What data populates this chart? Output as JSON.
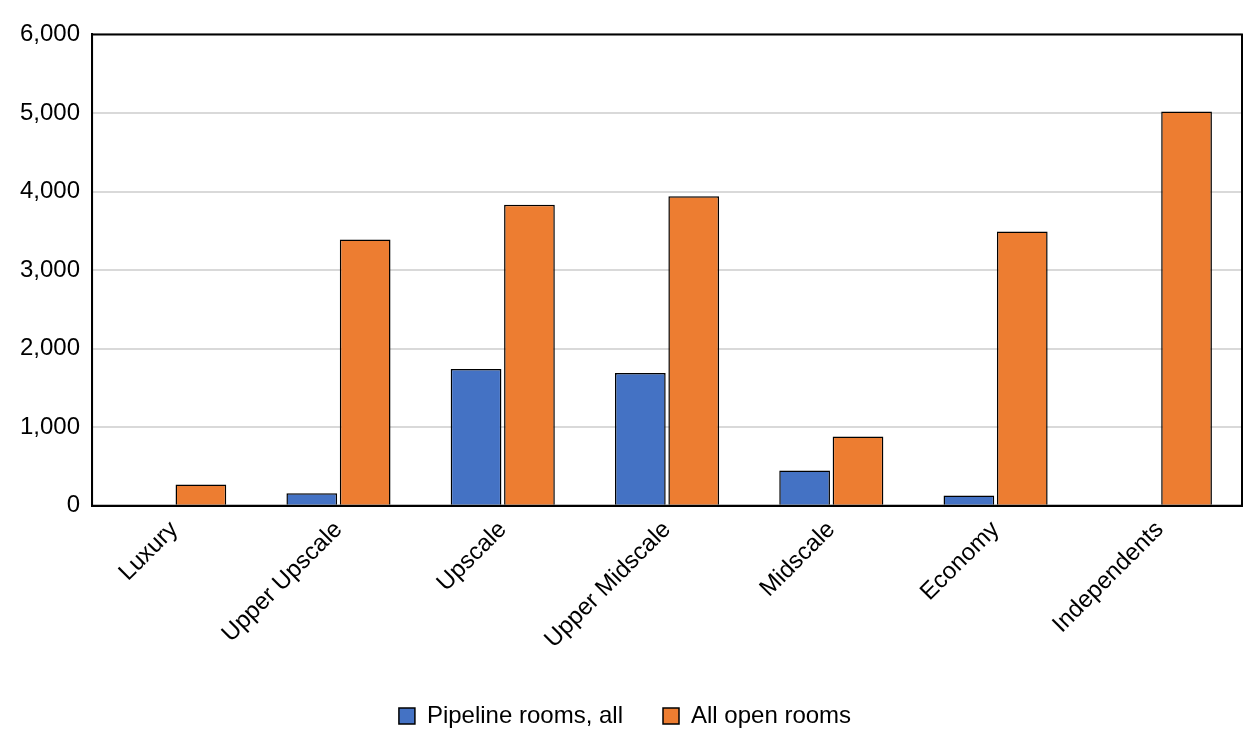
{
  "chart_data": {
    "type": "bar",
    "categories": [
      "Luxury",
      "Upper Upscale",
      "Upscale",
      "Upper Midscale",
      "Midscale",
      "Economy",
      "Independents"
    ],
    "series": [
      {
        "name": "Pipeline rooms, all",
        "color": "#4472c4",
        "values": [
          0,
          160,
          1740,
          1690,
          450,
          130,
          0
        ]
      },
      {
        "name": "All open rooms",
        "color": "#ed7d31",
        "values": [
          270,
          3390,
          3830,
          3940,
          880,
          3490,
          5020
        ]
      }
    ],
    "ylim": [
      0,
      6000
    ],
    "yticks": [
      {
        "value": 0,
        "label": "0"
      },
      {
        "value": 1000,
        "label": "1,000"
      },
      {
        "value": 2000,
        "label": "2,000"
      },
      {
        "value": 3000,
        "label": "3,000"
      },
      {
        "value": 4000,
        "label": "4,000"
      },
      {
        "value": 5000,
        "label": "5,000"
      },
      {
        "value": 6000,
        "label": "6,000"
      }
    ],
    "grid": "y",
    "legend": "bottom"
  }
}
